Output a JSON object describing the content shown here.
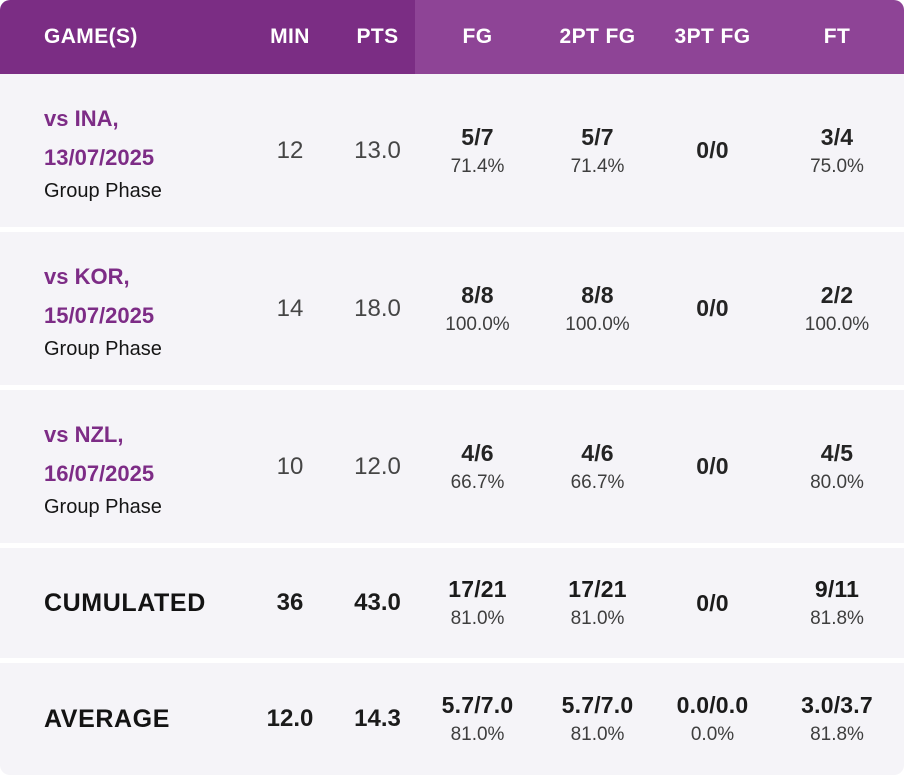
{
  "header": {
    "cols": [
      "GAME(S)",
      "MIN",
      "PTS",
      "FG",
      "2PT FG",
      "3PT FG",
      "FT"
    ]
  },
  "rows": [
    {
      "opponent": "vs INA,",
      "date": "13/07/2025",
      "phase": "Group Phase",
      "min": "12",
      "pts": "13.0",
      "fg_made": "5/7",
      "fg_pct": "71.4%",
      "fg2_made": "5/7",
      "fg2_pct": "71.4%",
      "fg3_made": "0/0",
      "fg3_pct": "",
      "ft_made": "3/4",
      "ft_pct": "75.0%"
    },
    {
      "opponent": "vs KOR,",
      "date": "15/07/2025",
      "phase": "Group Phase",
      "min": "14",
      "pts": "18.0",
      "fg_made": "8/8",
      "fg_pct": "100.0%",
      "fg2_made": "8/8",
      "fg2_pct": "100.0%",
      "fg3_made": "0/0",
      "fg3_pct": "",
      "ft_made": "2/2",
      "ft_pct": "100.0%"
    },
    {
      "opponent": "vs NZL,",
      "date": "16/07/2025",
      "phase": "Group Phase",
      "min": "10",
      "pts": "12.0",
      "fg_made": "4/6",
      "fg_pct": "66.7%",
      "fg2_made": "4/6",
      "fg2_pct": "66.7%",
      "fg3_made": "0/0",
      "fg3_pct": "",
      "ft_made": "4/5",
      "ft_pct": "80.0%"
    }
  ],
  "cumulated": {
    "label": "CUMULATED",
    "min": "36",
    "pts": "43.0",
    "fg_made": "17/21",
    "fg_pct": "81.0%",
    "fg2_made": "17/21",
    "fg2_pct": "81.0%",
    "fg3_made": "0/0",
    "fg3_pct": "",
    "ft_made": "9/11",
    "ft_pct": "81.8%"
  },
  "average": {
    "label": "AVERAGE",
    "min": "12.0",
    "pts": "14.3",
    "fg_made": "5.7/7.0",
    "fg_pct": "81.0%",
    "fg2_made": "5.7/7.0",
    "fg2_pct": "81.0%",
    "fg3_made": "0.0/0.0",
    "fg3_pct": "0.0%",
    "ft_made": "3.0/3.7",
    "ft_pct": "81.8%"
  },
  "colors": {
    "header_left_bg": "#7b2d84",
    "header_right_bg": "#8e4496",
    "row_bg": "#f5f4f8",
    "link_purple": "#7d2c86"
  }
}
